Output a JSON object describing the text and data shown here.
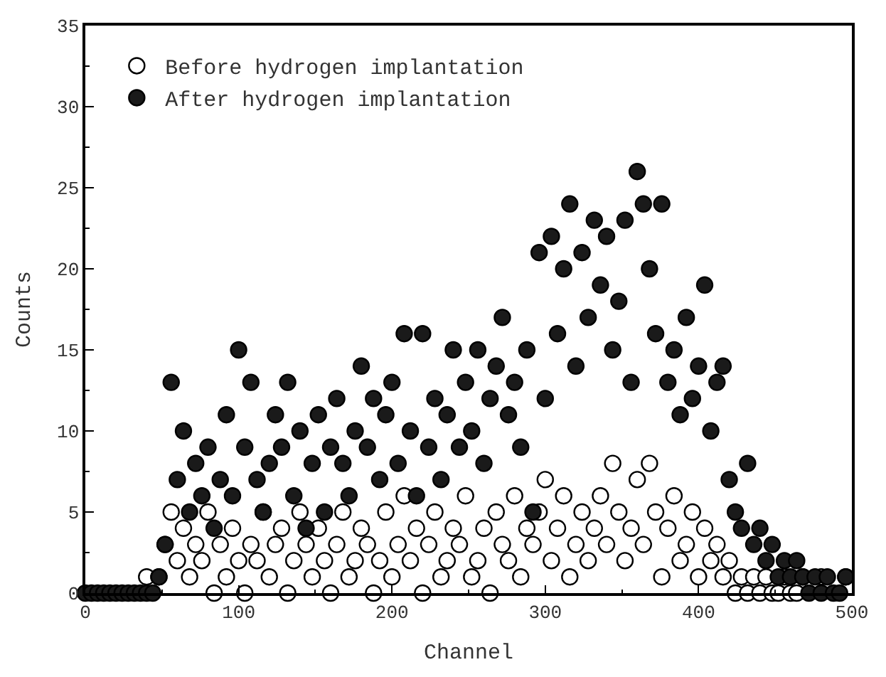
{
  "chart_data": {
    "type": "scatter",
    "xlabel": "Channel",
    "ylabel": "Counts",
    "xlim": [
      0,
      500
    ],
    "xticks": [
      0,
      100,
      200,
      300,
      400,
      500
    ],
    "ylim": [
      0,
      35
    ],
    "yticks": [
      0,
      5,
      10,
      15,
      20,
      25,
      30,
      35
    ],
    "legend": "top left",
    "marker": "circle",
    "x": [
      0,
      4,
      8,
      12,
      16,
      20,
      24,
      28,
      32,
      36,
      40,
      44,
      48,
      52,
      56,
      60,
      64,
      68,
      72,
      76,
      80,
      84,
      88,
      92,
      96,
      100,
      104,
      108,
      112,
      116,
      120,
      124,
      128,
      132,
      136,
      140,
      144,
      148,
      152,
      156,
      160,
      164,
      168,
      172,
      176,
      180,
      184,
      188,
      192,
      196,
      200,
      204,
      208,
      212,
      216,
      220,
      224,
      228,
      232,
      236,
      240,
      244,
      248,
      252,
      256,
      260,
      264,
      268,
      272,
      276,
      280,
      284,
      288,
      292,
      296,
      300,
      304,
      308,
      312,
      316,
      320,
      324,
      328,
      332,
      336,
      340,
      344,
      348,
      352,
      356,
      360,
      364,
      368,
      372,
      376,
      380,
      384,
      388,
      392,
      396,
      400,
      404,
      408,
      412,
      416,
      420,
      424,
      428,
      432,
      436,
      440,
      444,
      448,
      452,
      456,
      460,
      464,
      468,
      472,
      476,
      480,
      484,
      488,
      492,
      496
    ],
    "series": [
      {
        "name": "Before hydrogen implantation",
        "color": "#ffffff",
        "values": [
          null,
          null,
          null,
          null,
          null,
          null,
          null,
          null,
          null,
          null,
          1,
          null,
          1,
          3,
          5,
          2,
          4,
          1,
          3,
          2,
          5,
          0,
          3,
          1,
          4,
          2,
          0,
          3,
          2,
          5,
          1,
          3,
          4,
          0,
          2,
          5,
          3,
          1,
          4,
          2,
          0,
          3,
          5,
          1,
          2,
          4,
          3,
          0,
          2,
          5,
          1,
          3,
          6,
          2,
          4,
          0,
          3,
          5,
          1,
          2,
          4,
          3,
          6,
          1,
          2,
          4,
          0,
          5,
          3,
          2,
          6,
          1,
          4,
          3,
          5,
          7,
          2,
          4,
          6,
          1,
          3,
          5,
          2,
          4,
          6,
          3,
          8,
          5,
          2,
          4,
          7,
          3,
          8,
          5,
          1,
          4,
          6,
          2,
          3,
          5,
          1,
          4,
          2,
          3,
          1,
          2,
          0,
          1,
          0,
          1,
          0,
          1,
          0,
          0,
          1,
          0,
          0,
          1,
          null,
          null,
          1,
          null,
          null,
          null,
          1
        ]
      },
      {
        "name": "After hydrogen implantation",
        "color": "#1a1a1a",
        "values": [
          0,
          0,
          0,
          0,
          0,
          0,
          0,
          0,
          0,
          0,
          0,
          0,
          1,
          3,
          13,
          7,
          10,
          5,
          8,
          6,
          9,
          4,
          7,
          11,
          6,
          15,
          9,
          13,
          7,
          5,
          8,
          11,
          9,
          13,
          6,
          10,
          4,
          8,
          11,
          5,
          9,
          12,
          8,
          6,
          10,
          14,
          9,
          12,
          7,
          11,
          13,
          8,
          16,
          10,
          6,
          16,
          9,
          12,
          7,
          11,
          15,
          9,
          13,
          10,
          15,
          8,
          12,
          14,
          17,
          11,
          13,
          9,
          15,
          5,
          21,
          12,
          22,
          16,
          20,
          24,
          14,
          21,
          17,
          23,
          19,
          22,
          15,
          18,
          23,
          13,
          26,
          24,
          20,
          16,
          24,
          13,
          15,
          11,
          17,
          12,
          14,
          19,
          10,
          13,
          14,
          7,
          5,
          4,
          8,
          3,
          4,
          2,
          3,
          1,
          2,
          1,
          2,
          1,
          0,
          1,
          0,
          1,
          0,
          0,
          1
        ]
      }
    ]
  }
}
